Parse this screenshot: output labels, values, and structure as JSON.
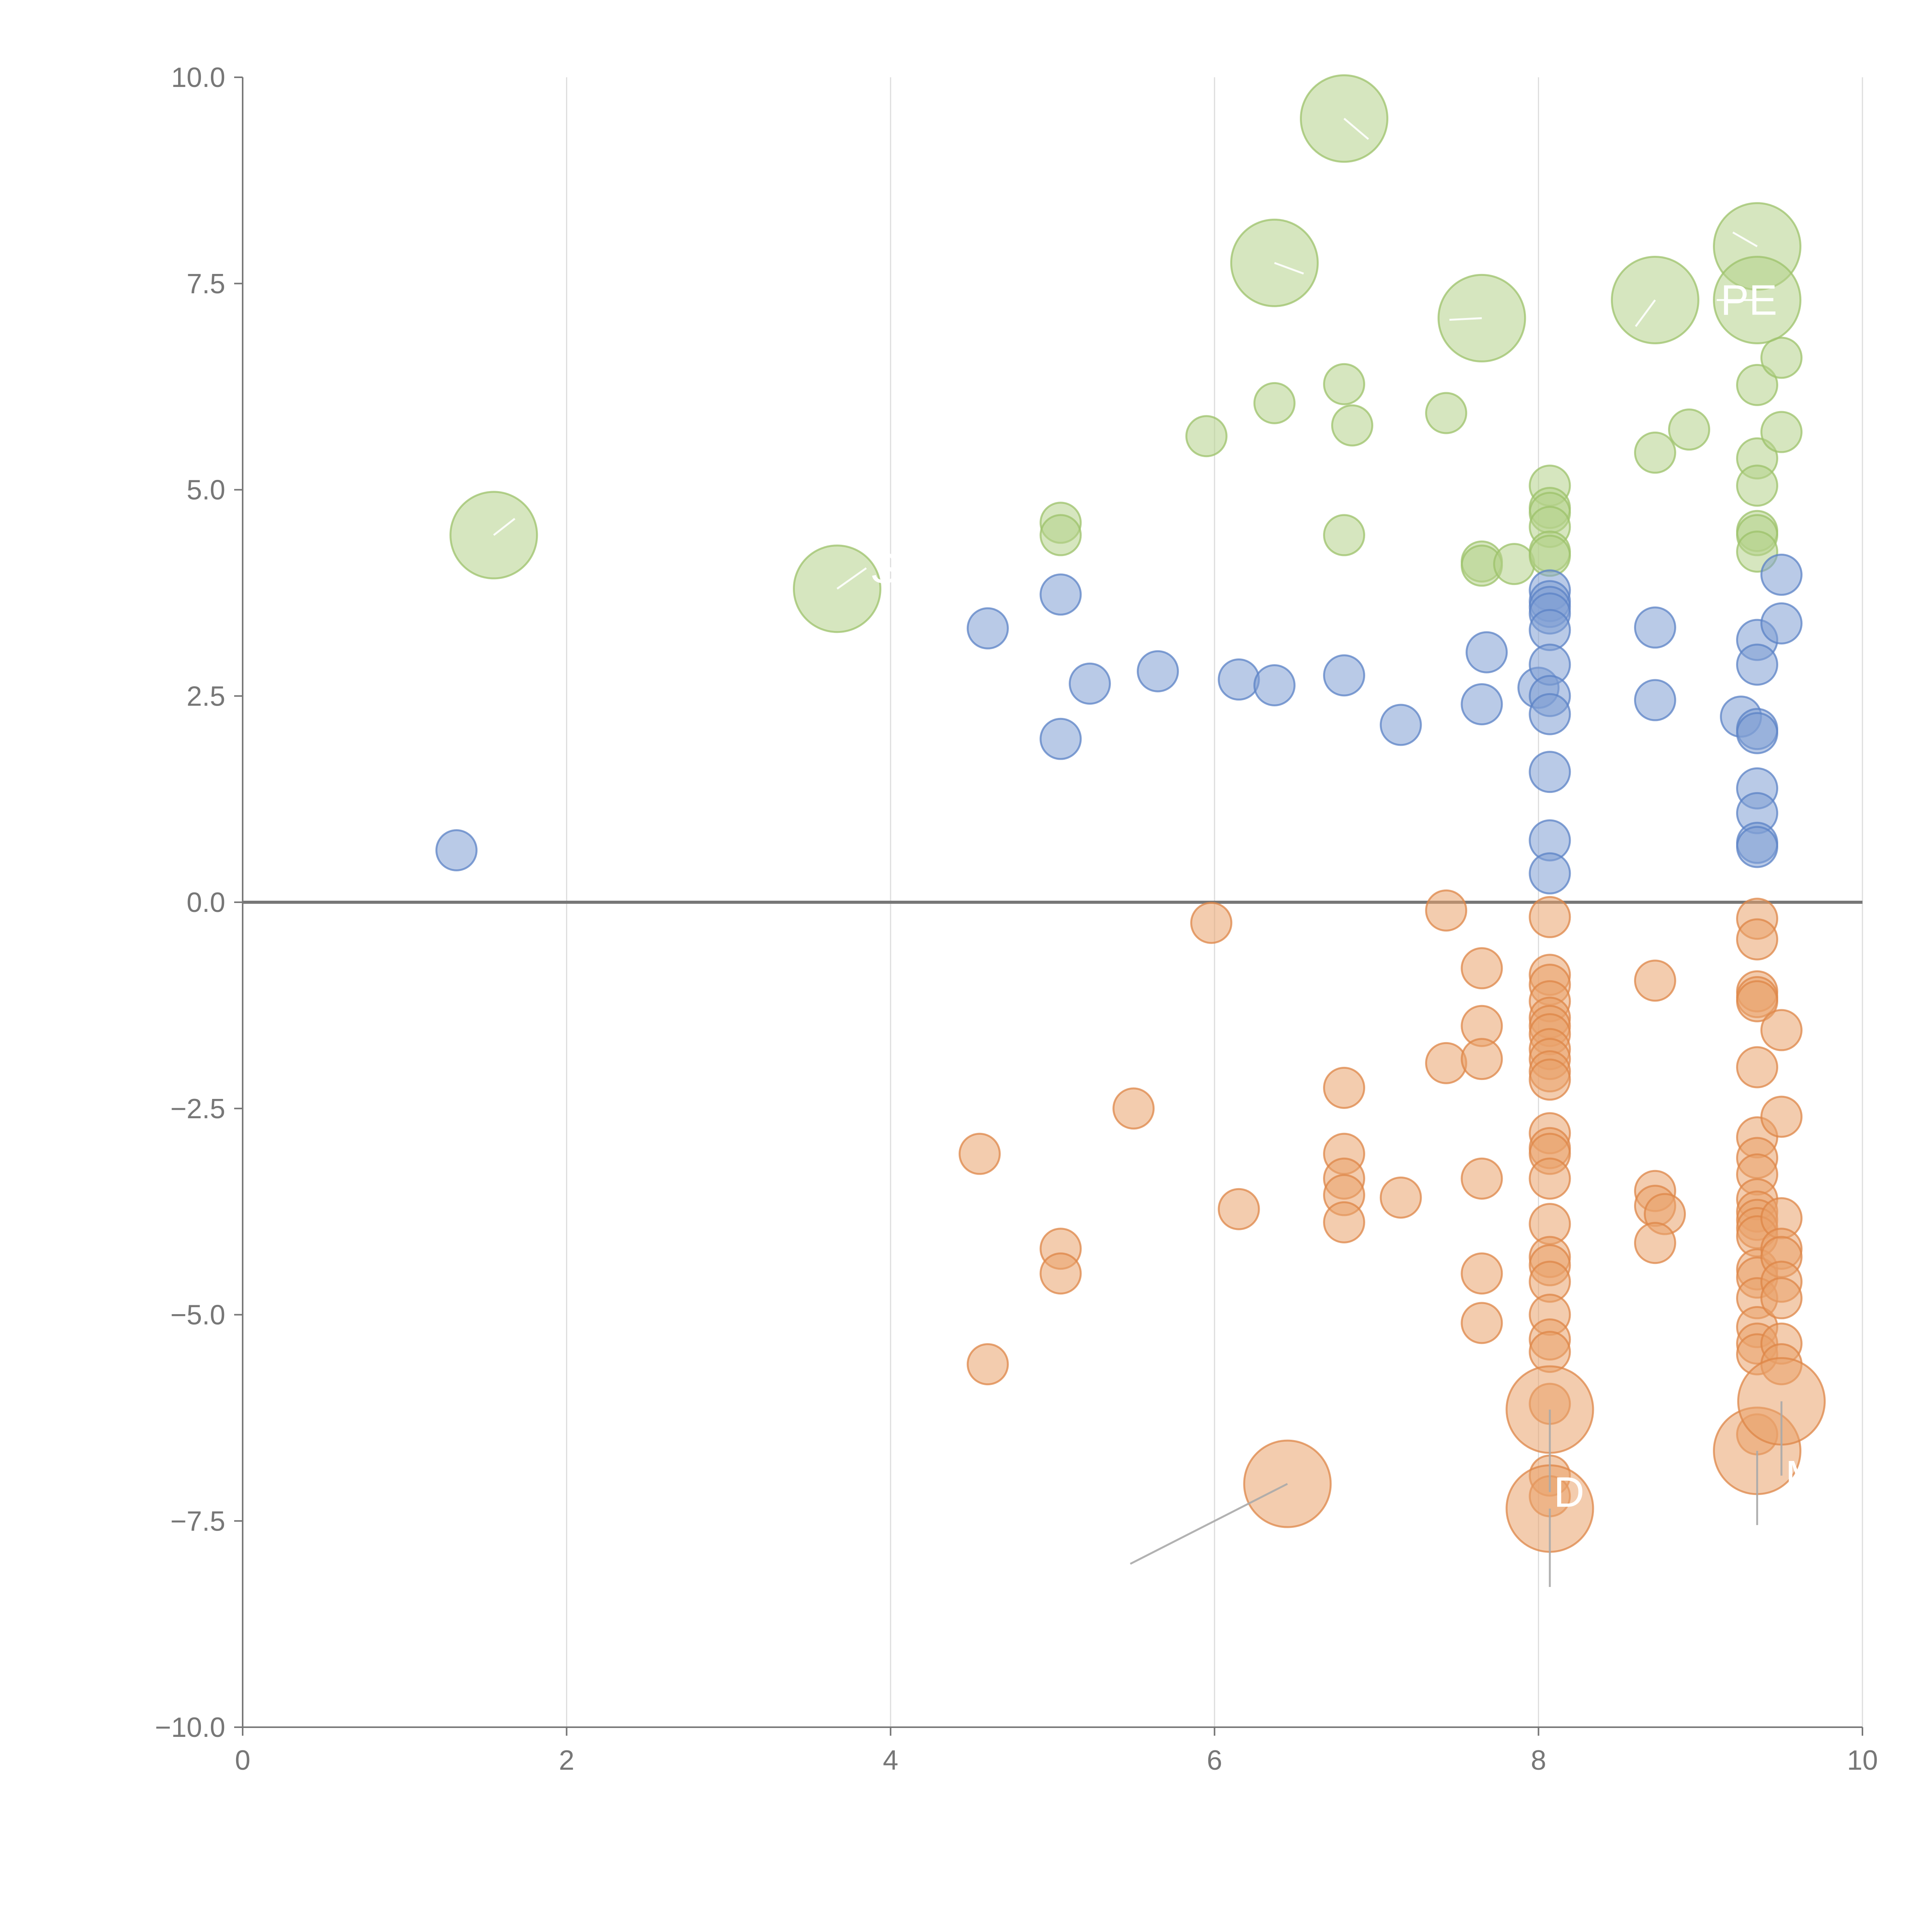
{
  "chart_data": {
    "type": "scatter",
    "title": "",
    "xlabel": "",
    "ylabel": "",
    "xlim": [
      0,
      10
    ],
    "ylim": [
      -10,
      10
    ],
    "grid": "vertical",
    "legend": "none",
    "x_ticks": [
      {
        "value": 0,
        "label": "0"
      },
      {
        "value": 2,
        "label": "2"
      },
      {
        "value": 4,
        "label": "4"
      },
      {
        "value": 6,
        "label": "6"
      },
      {
        "value": 8,
        "label": "8"
      },
      {
        "value": 10,
        "label": "10"
      }
    ],
    "y_ticks": [
      {
        "value": 10,
        "label": "10.0"
      },
      {
        "value": 7.5,
        "label": "7.5"
      },
      {
        "value": 5,
        "label": "5.0"
      },
      {
        "value": 2.5,
        "label": "2.5"
      },
      {
        "value": 0,
        "label": "0.0"
      },
      {
        "value": -2.5,
        "label": "−2.5"
      },
      {
        "value": -5,
        "label": "−5.0"
      },
      {
        "value": -7.5,
        "label": "−7.5"
      },
      {
        "value": -10,
        "label": "−10.0"
      }
    ],
    "colors": {
      "green_fill": "#b5d28a",
      "green_stroke": "#9cc26a",
      "blue_fill": "#7f9fd4",
      "blue_stroke": "#5b82c6",
      "orange_fill": "#e9a36c",
      "orange_stroke": "#de8647",
      "leader_white": "#ffffff",
      "leader_gray": "#aaaaaa"
    },
    "series": [
      {
        "name": "green",
        "color_key": "green",
        "points": [
          [
            1.55,
            4.45,
            3
          ],
          [
            3.67,
            3.8,
            3
          ],
          [
            6.8,
            9.5,
            3
          ],
          [
            6.37,
            7.75,
            3
          ],
          [
            7.65,
            7.08,
            3
          ],
          [
            8.72,
            7.3,
            3
          ],
          [
            9.35,
            7.95,
            3
          ],
          [
            9.35,
            7.3,
            3
          ],
          [
            5.05,
            4.6,
            1
          ],
          [
            5.05,
            4.45,
            1
          ],
          [
            5.95,
            5.65,
            1
          ],
          [
            6.37,
            6.05,
            1
          ],
          [
            6.8,
            6.28,
            1
          ],
          [
            6.85,
            5.78,
            1
          ],
          [
            6.8,
            4.45,
            1
          ],
          [
            7.43,
            5.93,
            1
          ],
          [
            7.65,
            4.13,
            1
          ],
          [
            7.65,
            4.08,
            1
          ],
          [
            7.85,
            4.1,
            1
          ],
          [
            8.07,
            5.05,
            1
          ],
          [
            8.07,
            4.78,
            1
          ],
          [
            8.07,
            4.72,
            1
          ],
          [
            8.07,
            4.55,
            1
          ],
          [
            8.07,
            4.25,
            1
          ],
          [
            8.07,
            4.2,
            1
          ],
          [
            8.72,
            5.45,
            1
          ],
          [
            8.93,
            5.73,
            1
          ],
          [
            9.35,
            6.27,
            1
          ],
          [
            9.35,
            5.38,
            1
          ],
          [
            9.35,
            5.05,
            1
          ],
          [
            9.35,
            4.5,
            1
          ],
          [
            9.35,
            4.45,
            1
          ],
          [
            9.35,
            4.25,
            1
          ],
          [
            9.5,
            6.6,
            1
          ],
          [
            9.5,
            5.7,
            1
          ]
        ]
      },
      {
        "name": "blue",
        "color_key": "blue",
        "points": [
          [
            1.32,
            0.63,
            1
          ],
          [
            4.6,
            3.32,
            1
          ],
          [
            5.05,
            3.73,
            1
          ],
          [
            5.05,
            1.98,
            1
          ],
          [
            5.23,
            2.65,
            1
          ],
          [
            5.65,
            2.8,
            1
          ],
          [
            6.15,
            2.7,
            1
          ],
          [
            6.37,
            2.63,
            1
          ],
          [
            6.8,
            2.75,
            1
          ],
          [
            7.15,
            2.15,
            1
          ],
          [
            7.65,
            2.4,
            1
          ],
          [
            7.68,
            3.03,
            1
          ],
          [
            8.0,
            2.6,
            1
          ],
          [
            8.07,
            3.78,
            1
          ],
          [
            8.07,
            3.65,
            1
          ],
          [
            8.07,
            3.58,
            1
          ],
          [
            8.07,
            3.5,
            1
          ],
          [
            8.07,
            3.3,
            1
          ],
          [
            8.07,
            2.88,
            1
          ],
          [
            8.07,
            2.5,
            1
          ],
          [
            8.07,
            2.28,
            1
          ],
          [
            8.07,
            1.58,
            1
          ],
          [
            8.07,
            0.75,
            1
          ],
          [
            8.07,
            0.35,
            1
          ],
          [
            8.72,
            3.33,
            1
          ],
          [
            8.72,
            2.45,
            1
          ],
          [
            9.25,
            2.25,
            1
          ],
          [
            9.35,
            3.18,
            1
          ],
          [
            9.35,
            2.88,
            1
          ],
          [
            9.35,
            2.1,
            1
          ],
          [
            9.35,
            2.05,
            1
          ],
          [
            9.35,
            1.38,
            1
          ],
          [
            9.35,
            1.08,
            1
          ],
          [
            9.35,
            0.72,
            1
          ],
          [
            9.35,
            0.67,
            1
          ],
          [
            9.5,
            3.97,
            1
          ],
          [
            9.5,
            3.38,
            1
          ]
        ]
      },
      {
        "name": "orange",
        "color_key": "orange",
        "points": [
          [
            6.45,
            -7.05,
            3
          ],
          [
            8.07,
            -6.15,
            3
          ],
          [
            8.07,
            -7.35,
            3
          ],
          [
            9.35,
            -6.65,
            3
          ],
          [
            9.5,
            -6.05,
            3
          ],
          [
            4.55,
            -3.05,
            1
          ],
          [
            4.6,
            -5.6,
            1
          ],
          [
            5.05,
            -4.2,
            1
          ],
          [
            5.05,
            -4.5,
            1
          ],
          [
            5.5,
            -2.5,
            1
          ],
          [
            5.98,
            -0.25,
            1
          ],
          [
            6.15,
            -3.72,
            1
          ],
          [
            6.8,
            -2.25,
            1
          ],
          [
            6.8,
            -3.05,
            1
          ],
          [
            6.8,
            -3.35,
            1
          ],
          [
            6.8,
            -3.55,
            1
          ],
          [
            6.8,
            -3.88,
            1
          ],
          [
            7.15,
            -3.58,
            1
          ],
          [
            7.43,
            -0.1,
            1
          ],
          [
            7.43,
            -1.95,
            1
          ],
          [
            7.65,
            -0.8,
            1
          ],
          [
            7.65,
            -1.5,
            1
          ],
          [
            7.65,
            -1.9,
            1
          ],
          [
            7.65,
            -3.35,
            1
          ],
          [
            7.65,
            -4.5,
            1
          ],
          [
            7.65,
            -5.1,
            1
          ],
          [
            8.07,
            -0.18,
            1
          ],
          [
            8.07,
            -0.88,
            1
          ],
          [
            8.07,
            -1.0,
            1
          ],
          [
            8.07,
            -1.2,
            1
          ],
          [
            8.07,
            -1.4,
            1
          ],
          [
            8.07,
            -1.5,
            1
          ],
          [
            8.07,
            -1.6,
            1
          ],
          [
            8.07,
            -1.78,
            1
          ],
          [
            8.07,
            -1.9,
            1
          ],
          [
            8.07,
            -2.05,
            1
          ],
          [
            8.07,
            -2.15,
            1
          ],
          [
            8.07,
            -2.8,
            1
          ],
          [
            8.07,
            -2.98,
            1
          ],
          [
            8.07,
            -3.05,
            1
          ],
          [
            8.07,
            -3.35,
            1
          ],
          [
            8.07,
            -3.9,
            1
          ],
          [
            8.07,
            -4.3,
            1
          ],
          [
            8.07,
            -4.4,
            1
          ],
          [
            8.07,
            -4.6,
            1
          ],
          [
            8.07,
            -5.0,
            1
          ],
          [
            8.07,
            -5.3,
            1
          ],
          [
            8.07,
            -5.45,
            1
          ],
          [
            8.07,
            -6.08,
            1
          ],
          [
            8.07,
            -6.95,
            1
          ],
          [
            8.07,
            -7.2,
            1
          ],
          [
            8.72,
            -0.95,
            1
          ],
          [
            8.72,
            -3.5,
            1
          ],
          [
            8.72,
            -3.68,
            1
          ],
          [
            8.78,
            -3.78,
            1
          ],
          [
            8.72,
            -4.13,
            1
          ],
          [
            9.35,
            -0.2,
            1
          ],
          [
            9.35,
            -0.45,
            1
          ],
          [
            9.35,
            -1.08,
            1
          ],
          [
            9.35,
            -1.15,
            1
          ],
          [
            9.35,
            -1.2,
            1
          ],
          [
            9.35,
            -2.0,
            1
          ],
          [
            9.35,
            -2.85,
            1
          ],
          [
            9.35,
            -3.1,
            1
          ],
          [
            9.35,
            -3.3,
            1
          ],
          [
            9.35,
            -3.6,
            1
          ],
          [
            9.35,
            -3.75,
            1
          ],
          [
            9.35,
            -3.85,
            1
          ],
          [
            9.35,
            -3.95,
            1
          ],
          [
            9.35,
            -4.05,
            1
          ],
          [
            9.35,
            -4.45,
            1
          ],
          [
            9.35,
            -4.55,
            1
          ],
          [
            9.35,
            -4.8,
            1
          ],
          [
            9.35,
            -5.15,
            1
          ],
          [
            9.35,
            -5.35,
            1
          ],
          [
            9.35,
            -5.48,
            1
          ],
          [
            9.35,
            -6.45,
            1
          ],
          [
            9.5,
            -1.55,
            1
          ],
          [
            9.5,
            -2.6,
            1
          ],
          [
            9.5,
            -3.83,
            1
          ],
          [
            9.5,
            -4.2,
            1
          ],
          [
            9.5,
            -4.3,
            1
          ],
          [
            9.5,
            -4.6,
            1
          ],
          [
            9.5,
            -4.8,
            1
          ],
          [
            9.5,
            -5.35,
            1
          ],
          [
            9.5,
            -5.6,
            1
          ]
        ]
      }
    ],
    "annotations": [
      {
        "text": "",
        "visible_text": "",
        "from": [
          1.55,
          4.45
        ],
        "to": [
          1.68,
          4.65
        ],
        "leader": "leader_white",
        "text_anchor": "start"
      },
      {
        "text": "S",
        "from": [
          3.67,
          3.8
        ],
        "to": [
          3.85,
          4.05
        ],
        "leader": "leader_white",
        "text_anchor": "start"
      },
      {
        "text": "",
        "from": [
          6.8,
          9.5
        ],
        "to": [
          6.95,
          9.25
        ],
        "leader": "leader_white",
        "text_anchor": "start"
      },
      {
        "text": "",
        "from": [
          6.37,
          7.75
        ],
        "to": [
          6.55,
          7.62
        ],
        "leader": "leader_white",
        "text_anchor": "start"
      },
      {
        "text": "",
        "from": [
          7.65,
          7.08
        ],
        "to": [
          7.45,
          7.06
        ],
        "leader": "leader_white",
        "text_anchor": "end"
      },
      {
        "text": "",
        "from": [
          8.72,
          7.3
        ],
        "to": [
          8.6,
          6.98
        ],
        "leader": "leader_white",
        "text_anchor": "end"
      },
      {
        "text": "",
        "from": [
          9.35,
          7.95
        ],
        "to": [
          9.2,
          8.12
        ],
        "leader": "leader_white",
        "text_anchor": "end"
      },
      {
        "text": "PE",
        "from": [
          9.35,
          7.3
        ],
        "to": [
          9.1,
          7.3
        ],
        "leader": "leader_white",
        "text_anchor": "start"
      },
      {
        "text": "",
        "from": [
          6.45,
          -7.05
        ],
        "to": [
          5.48,
          -8.02
        ],
        "leader": "leader_gray",
        "text_anchor": "end"
      },
      {
        "text": "D",
        "from": [
          8.07,
          -6.15
        ],
        "to": [
          8.07,
          -7.15
        ],
        "leader": "leader_gray",
        "text_anchor": "start"
      },
      {
        "text": "",
        "from": [
          8.07,
          -7.35
        ],
        "to": [
          8.07,
          -8.3
        ],
        "leader": "leader_gray",
        "text_anchor": "start"
      },
      {
        "text": "",
        "from": [
          9.35,
          -6.65
        ],
        "to": [
          9.35,
          -7.55
        ],
        "leader": "leader_gray",
        "text_anchor": "start"
      },
      {
        "text": "M",
        "from": [
          9.5,
          -6.05
        ],
        "to": [
          9.5,
          -6.95
        ],
        "leader": "leader_gray",
        "text_anchor": "start"
      }
    ]
  }
}
